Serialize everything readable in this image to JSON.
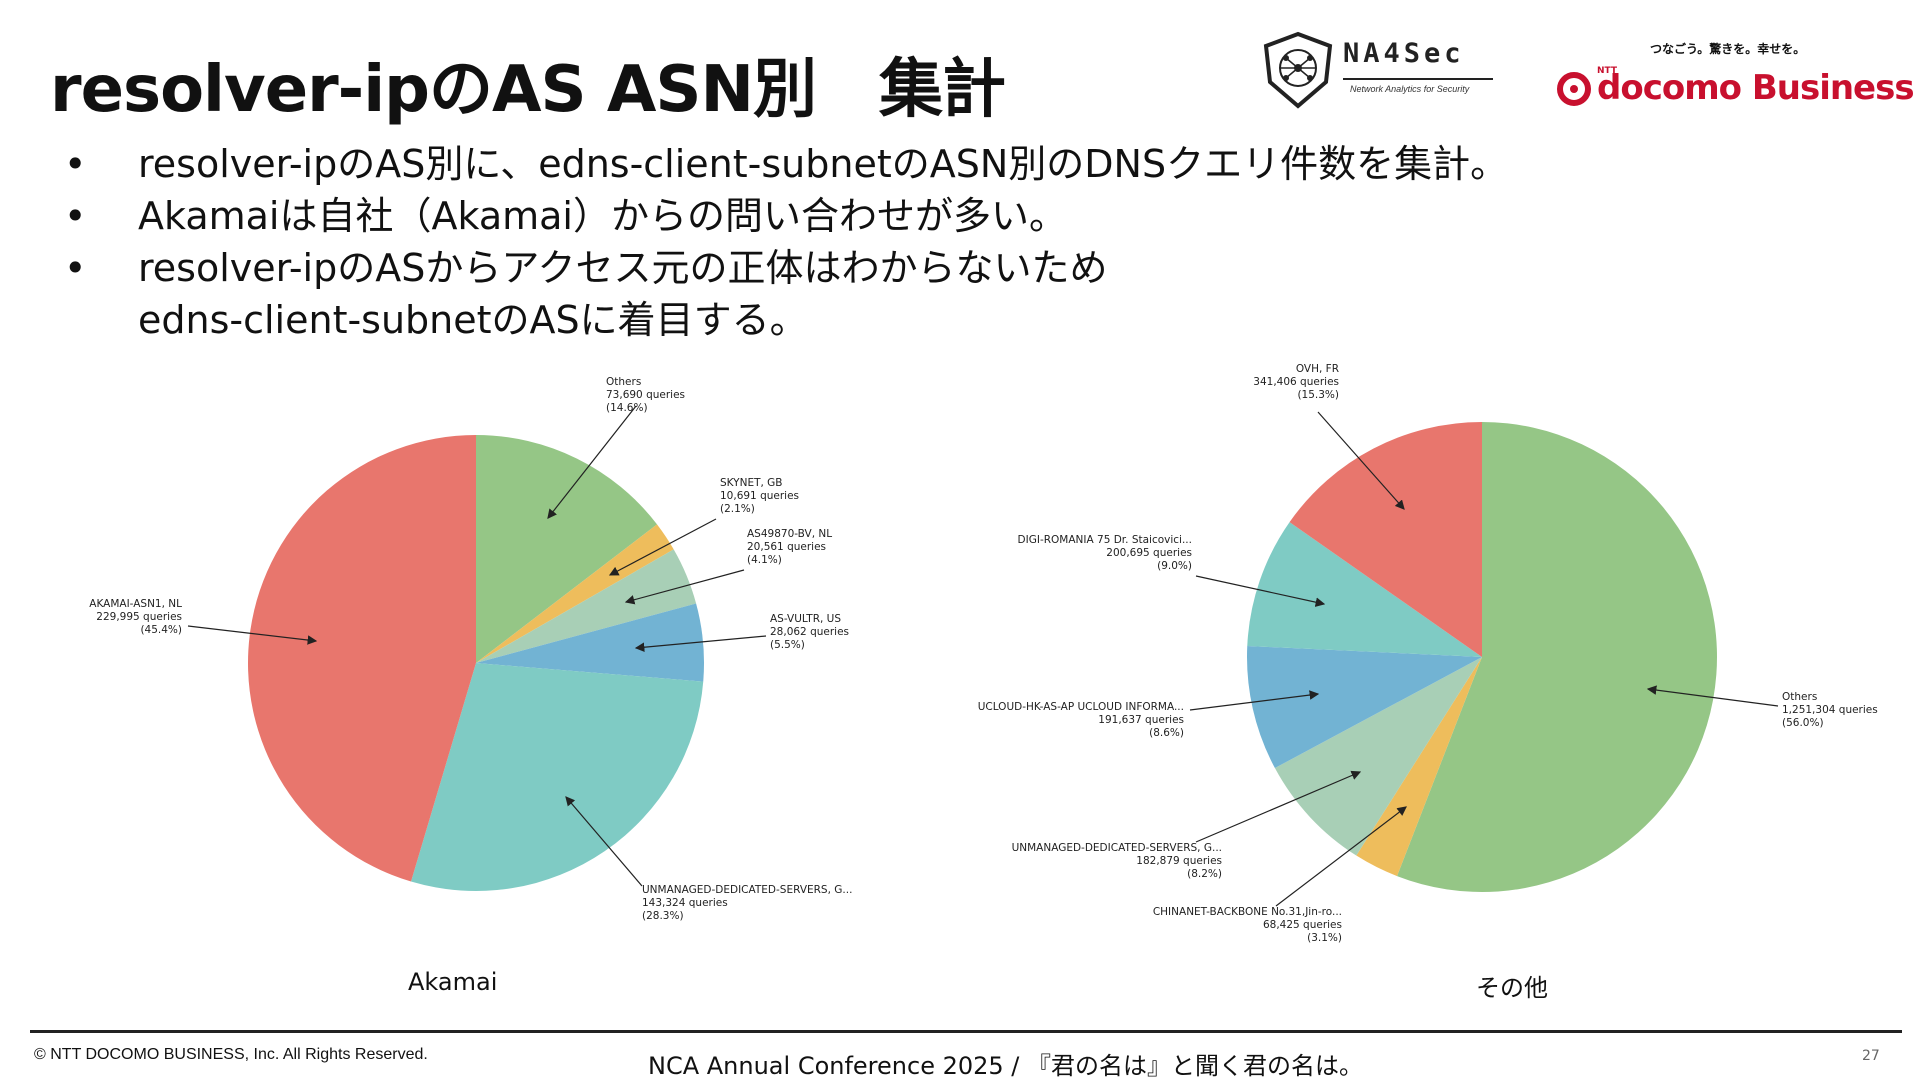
{
  "slide": {
    "title": "resolver-ipのAS ASN別　集計",
    "bullets": [
      "resolver-ipのAS別に、edns-client-subnetのASN別のDNSクエリ件数を集計。",
      "Akamaiは自社（Akamai）からの問い合わせが多い。",
      "resolver-ipのASからアクセス元の正体はわからないため\nedns-client-subnetのASに着目する。"
    ],
    "bullet_symbol": "•"
  },
  "logos": {
    "na4sec": {
      "name": "NA4Sec",
      "tagline": "Network Analytics for Security"
    },
    "docomo": {
      "tagline": "つなごう。驚きを。幸せを。",
      "ntt": "NTT",
      "name": "docomo",
      "business": "Business"
    }
  },
  "footer": {
    "copyright": "© NTT DOCOMO BUSINESS, Inc. All Rights Reserved.",
    "conference": "NCA Annual Conference 2025 / 『君の名は』と聞く君の名は。",
    "page_number": "27"
  },
  "colors": {
    "red": "#e8766d",
    "teal": "#7fcbc4",
    "blue": "#72b3d3",
    "mint": "#a8cfb6",
    "orange": "#eebd5c",
    "green": "#95c686"
  },
  "chart_data": [
    {
      "type": "pie",
      "caption": "Akamai",
      "start_angle_deg": 90,
      "direction": "clockwise",
      "slices": [
        {
          "label": "Others",
          "queries": 73690,
          "queries_text": "73,690 queries",
          "pct_text": "(14.6%)",
          "value": 14.6,
          "color": "#95c686"
        },
        {
          "label": "SKYNET, GB",
          "queries": 10691,
          "queries_text": "10,691 queries",
          "pct_text": "(2.1%)",
          "value": 2.1,
          "color": "#eebd5c"
        },
        {
          "label": "AS49870-BV, NL",
          "queries": 20561,
          "queries_text": "20,561 queries",
          "pct_text": "(4.1%)",
          "value": 4.1,
          "color": "#a8cfb6"
        },
        {
          "label": "AS-VULTR, US",
          "queries": 28062,
          "queries_text": "28,062 queries",
          "pct_text": "(5.5%)",
          "value": 5.5,
          "color": "#72b3d3"
        },
        {
          "label": "UNMANAGED-DEDICATED-SERVERS, G...",
          "queries": 143324,
          "queries_text": "143,324 queries",
          "pct_text": "(28.3%)",
          "value": 28.3,
          "color": "#7fcbc4"
        },
        {
          "label": "AKAMAI-ASN1, NL",
          "queries": 229995,
          "queries_text": "229,995 queries",
          "pct_text": "(45.4%)",
          "value": 45.4,
          "color": "#e8766d"
        }
      ]
    },
    {
      "type": "pie",
      "caption": "その他",
      "start_angle_deg": 90,
      "direction": "clockwise",
      "slices": [
        {
          "label": "Others",
          "queries": 1251304,
          "queries_text": "1,251,304 queries",
          "pct_text": "(56.0%)",
          "value": 56.0,
          "color": "#95c686"
        },
        {
          "label": "CHINANET-BACKBONE No.31,Jin-ro...",
          "queries": 68425,
          "queries_text": "68,425 queries",
          "pct_text": "(3.1%)",
          "value": 3.1,
          "color": "#eebd5c"
        },
        {
          "label": "UNMANAGED-DEDICATED-SERVERS, G...",
          "queries": 182879,
          "queries_text": "182,879 queries",
          "pct_text": "(8.2%)",
          "value": 8.2,
          "color": "#a8cfb6"
        },
        {
          "label": "UCLOUD-HK-AS-AP UCLOUD INFORMA...",
          "queries": 191637,
          "queries_text": "191,637 queries",
          "pct_text": "(8.6%)",
          "value": 8.6,
          "color": "#72b3d3"
        },
        {
          "label": "DIGI-ROMANIA 75 Dr. Staicovici...",
          "queries": 200695,
          "queries_text": "200,695 queries",
          "pct_text": "(9.0%)",
          "value": 9.0,
          "color": "#7fcbc4"
        },
        {
          "label": "OVH, FR",
          "queries": 341406,
          "queries_text": "341,406 queries",
          "pct_text": "(15.3%)",
          "value": 15.3,
          "color": "#e8766d"
        }
      ]
    }
  ]
}
